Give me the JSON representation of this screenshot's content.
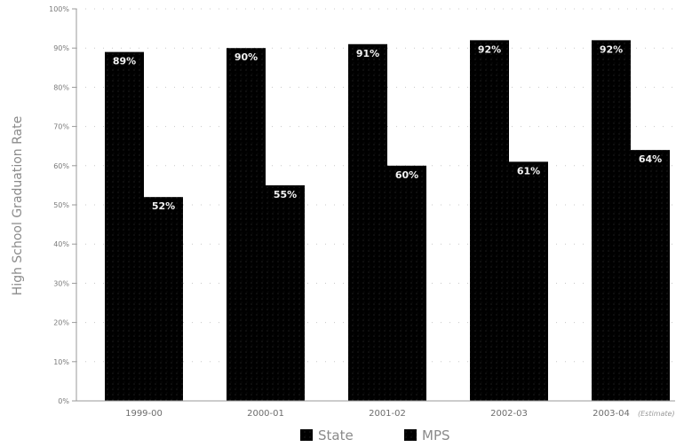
{
  "chart_data": {
    "type": "bar",
    "ylabel": "High School Graduation Rate",
    "ylim": [
      0,
      100
    ],
    "yticks": [
      "0%",
      "10%",
      "20%",
      "30%",
      "40%",
      "50%",
      "60%",
      "70%",
      "80%",
      "90%",
      "100%"
    ],
    "categories": [
      "1999-00",
      "2000-01",
      "2001-02",
      "2002-03",
      "2003-04"
    ],
    "category_notes": [
      "",
      "",
      "",
      "",
      "(Estimate)"
    ],
    "series": [
      {
        "name": "State",
        "values": [
          89,
          90,
          91,
          92,
          92
        ],
        "labels": [
          "89%",
          "90%",
          "91%",
          "92%",
          "92%"
        ]
      },
      {
        "name": "MPS",
        "values": [
          52,
          55,
          60,
          61,
          64
        ],
        "labels": [
          "52%",
          "55%",
          "60%",
          "61%",
          "64%"
        ]
      }
    ],
    "colors": [
      "#9c9c9c",
      "#a4a4a4"
    ],
    "grid": true,
    "legend": "bottom-center"
  }
}
